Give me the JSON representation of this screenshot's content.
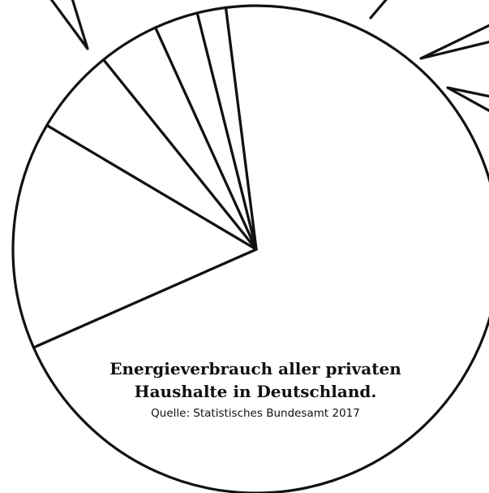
{
  "chart_data": {
    "type": "pie",
    "title": [
      "Energieverbrauch aller privaten",
      "Haushalte in Deutschland."
    ],
    "subtitle": "Quelle: Statistisches Bundesamt 2017",
    "slices": [
      {
        "percent": 70.4
      },
      {
        "percent": 15.1
      },
      {
        "percent": 5.7
      },
      {
        "percent": 4.0
      },
      {
        "percent": 2.9
      },
      {
        "percent": 1.9
      }
    ],
    "start_angle_deg": -7.2,
    "direction": "clockwise",
    "callout_count": 4
  },
  "colors": {
    "stroke": "#111111",
    "fill": "#ffffff",
    "text": "#111111"
  }
}
